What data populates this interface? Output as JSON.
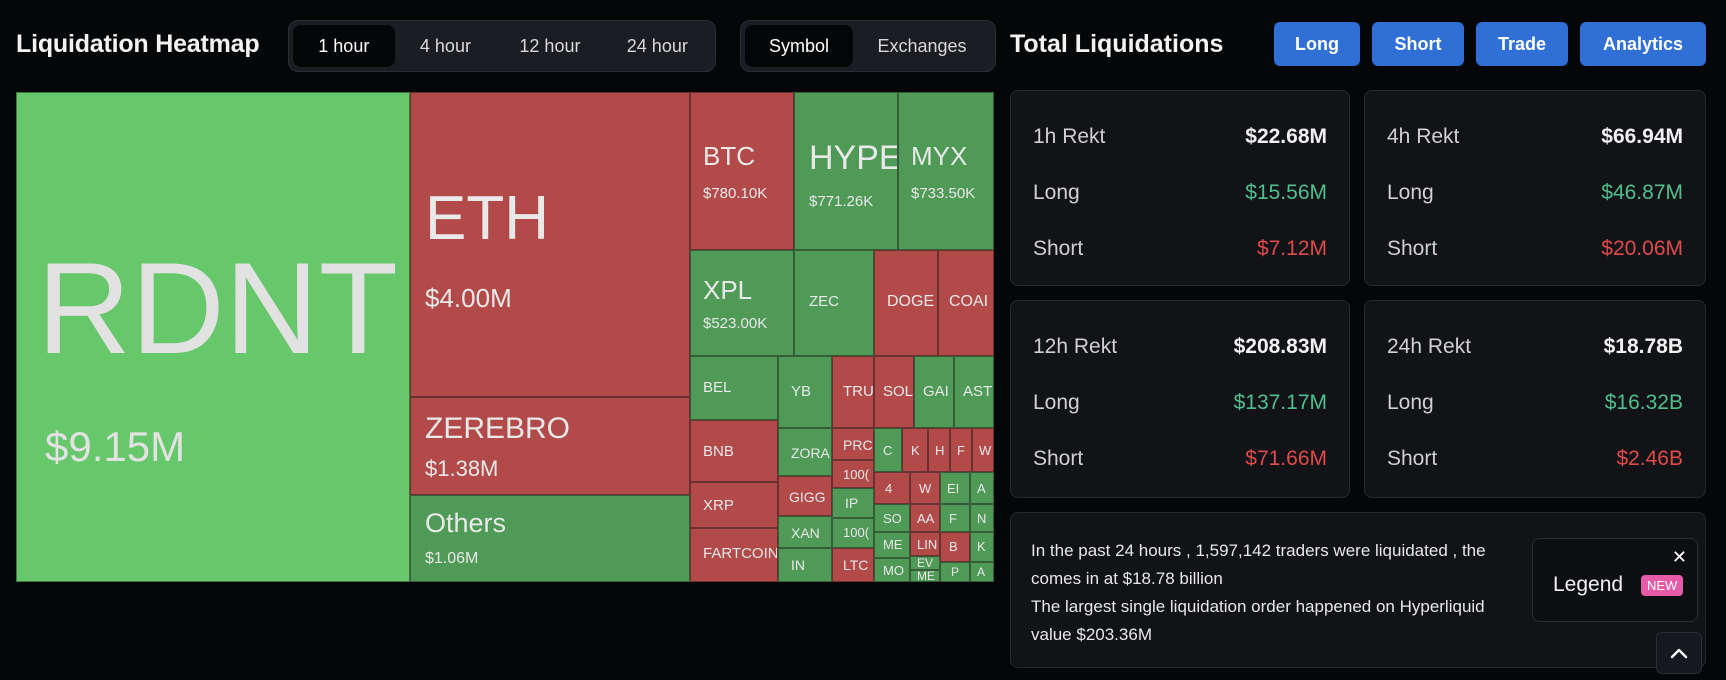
{
  "heatmap": {
    "title": "Liquidation Heatmap",
    "time_tabs": [
      "1 hour",
      "4 hour",
      "12 hour",
      "24 hour"
    ],
    "active_time_tab": "1 hour",
    "view_tabs": [
      "Symbol",
      "Exchanges"
    ],
    "active_view_tab": "Symbol",
    "tiles": {
      "rdnt": {
        "symbol": "RDNT",
        "value": "$9.15M"
      },
      "eth": {
        "symbol": "ETH",
        "value": "$4.00M"
      },
      "zerebro": {
        "symbol": "ZEREBRO",
        "value": "$1.38M"
      },
      "others": {
        "symbol": "Others",
        "value": "$1.06M"
      },
      "btc": {
        "symbol": "BTC",
        "value": "$780.10K"
      },
      "hype": {
        "symbol": "HYPE",
        "value": "$771.26K"
      },
      "myx": {
        "symbol": "MYX",
        "value": "$733.50K"
      },
      "xpl": {
        "symbol": "XPL",
        "value": "$523.00K"
      },
      "zec": {
        "symbol": "ZEC"
      },
      "doge": {
        "symbol": "DOGE"
      },
      "coai": {
        "symbol": "COAI"
      },
      "bel": {
        "symbol": "BEL"
      },
      "yb": {
        "symbol": "YB"
      },
      "tru": {
        "symbol": "TRU"
      },
      "sol": {
        "symbol": "SOL"
      },
      "gai": {
        "symbol": "GAI"
      },
      "ast": {
        "symbol": "AST"
      },
      "bnb": {
        "symbol": "BNB"
      },
      "zora": {
        "symbol": "ZORA"
      },
      "pro": {
        "symbol": "PRC"
      },
      "c": {
        "symbol": "C"
      },
      "k": {
        "symbol": "K"
      },
      "h": {
        "symbol": "H"
      },
      "f": {
        "symbol": "F"
      },
      "w": {
        "symbol": "W"
      },
      "xrp": {
        "symbol": "XRP"
      },
      "gigg": {
        "symbol": "GIGG"
      },
      "k100a": {
        "symbol": "100("
      },
      "n4": {
        "symbol": "4"
      },
      "w2": {
        "symbol": "W"
      },
      "ei": {
        "symbol": "EI"
      },
      "a1": {
        "symbol": "A"
      },
      "ip": {
        "symbol": "IP"
      },
      "so": {
        "symbol": "SO"
      },
      "aa": {
        "symbol": "AA"
      },
      "f2": {
        "symbol": "F"
      },
      "n": {
        "symbol": "N"
      },
      "fartcoin": {
        "symbol": "FARTCOIN"
      },
      "xan": {
        "symbol": "XAN"
      },
      "k100b": {
        "symbol": "100("
      },
      "me": {
        "symbol": "ME"
      },
      "lin": {
        "symbol": "LIN"
      },
      "b": {
        "symbol": "B"
      },
      "k2": {
        "symbol": "K"
      },
      "in": {
        "symbol": "IN"
      },
      "ltc": {
        "symbol": "LTC"
      },
      "mo": {
        "symbol": "MO"
      },
      "ev": {
        "symbol": "EV"
      },
      "me2": {
        "symbol": "ME"
      },
      "p": {
        "symbol": "P"
      },
      "a2": {
        "symbol": "A"
      }
    }
  },
  "totals": {
    "title": "Total Liquidations",
    "buttons": [
      "Long",
      "Short",
      "Trade",
      "Analytics"
    ],
    "cards": [
      {
        "label": "1h Rekt",
        "total": "$22.68M",
        "long_label": "Long",
        "long": "$15.56M",
        "short_label": "Short",
        "short": "$7.12M"
      },
      {
        "label": "4h Rekt",
        "total": "$66.94M",
        "long_label": "Long",
        "long": "$46.87M",
        "short_label": "Short",
        "short": "$20.06M"
      },
      {
        "label": "12h Rekt",
        "total": "$208.83M",
        "long_label": "Long",
        "long": "$137.17M",
        "short_label": "Short",
        "short": "$71.66M"
      },
      {
        "label": "24h Rekt",
        "total": "$18.78B",
        "long_label": "Long",
        "long": "$16.32B",
        "short_label": "Short",
        "short": "$2.46B"
      }
    ],
    "info_lines": [
      "In the past 24 hours , 1,597,142 traders were liquidated , the",
      "comes in at $18.78 billion",
      "The largest single liquidation order happened on Hyperliquid",
      "value $203.36M"
    ]
  },
  "legend": {
    "label": "Legend",
    "badge": "NEW",
    "close": "✕"
  },
  "icons": {
    "scroll_top": "chevron-up-icon",
    "close": "close-icon"
  },
  "colors": {
    "long_green": "#4fc08d",
    "short_red": "#e04a4a",
    "accent_blue": "#2f6fd6",
    "tile_green": "#4f9a56",
    "tile_red": "#b34a4a"
  }
}
